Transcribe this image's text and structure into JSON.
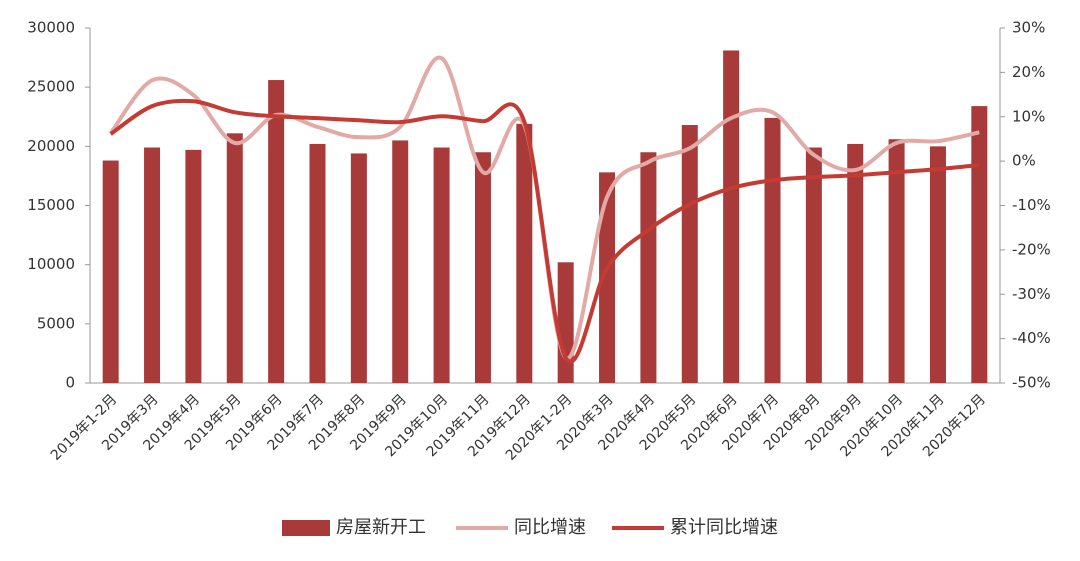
{
  "chart_data": {
    "type": "bar",
    "categories": [
      "2019年1-2月",
      "2019年3月",
      "2019年4月",
      "2019年5月",
      "2019年6月",
      "2019年7月",
      "2019年8月",
      "2019年9月",
      "2019年10月",
      "2019年11月",
      "2019年12月",
      "2020年1-2月",
      "2020年3月",
      "2020年4月",
      "2020年5月",
      "2020年6月",
      "2020年7月",
      "2020年8月",
      "2020年9月",
      "2020年10月",
      "2020年11月",
      "2020年12月"
    ],
    "series": [
      {
        "name": "房屋新开工",
        "type": "bar",
        "axis": "y",
        "color": "#a83a3a",
        "values": [
          18800,
          19900,
          19700,
          21100,
          25600,
          20200,
          19400,
          20500,
          19900,
          19500,
          21900,
          10200,
          17800,
          19500,
          21800,
          28100,
          22400,
          19900,
          20200,
          20600,
          20000,
          23400
        ]
      },
      {
        "name": "同比增速",
        "type": "line",
        "axis": "y2",
        "color": "#e2aaa6",
        "values": [
          6.3,
          18.2,
          14.9,
          4.1,
          10.4,
          7.7,
          5.4,
          7.7,
          23.2,
          -2.5,
          8.1,
          -44.3,
          -8.1,
          -0.2,
          2.9,
          9.7,
          11,
          1.4,
          -2,
          4.1,
          4.5,
          6.5
        ]
      },
      {
        "name": "累计同比增速",
        "type": "line",
        "axis": "y2",
        "color": "#c43b34",
        "values": [
          6.1,
          12.4,
          13.5,
          11,
          10.1,
          9.7,
          9.2,
          8.8,
          10.1,
          9,
          8.9,
          -44.3,
          -24.1,
          -15.5,
          -9.7,
          -6.1,
          -4.3,
          -3.6,
          -3.2,
          -2.5,
          -1.8,
          -0.9
        ]
      }
    ],
    "ylim": [
      0,
      30000
    ],
    "yticks": [
      0,
      5000,
      10000,
      15000,
      20000,
      25000,
      30000
    ],
    "y2lim": [
      -50,
      30
    ],
    "y2ticks": [
      {
        "value": -50,
        "label": "-50%"
      },
      {
        "value": -40,
        "label": "-40%"
      },
      {
        "value": -30,
        "label": "-30%"
      },
      {
        "value": -20,
        "label": "-20%"
      },
      {
        "value": -10,
        "label": "-10%"
      },
      {
        "value": 0,
        "label": "0%"
      },
      {
        "value": 10,
        "label": "10%"
      },
      {
        "value": 20,
        "label": "20%"
      },
      {
        "value": 30,
        "label": "30%"
      }
    ],
    "grid": false,
    "legend": "bottom"
  }
}
